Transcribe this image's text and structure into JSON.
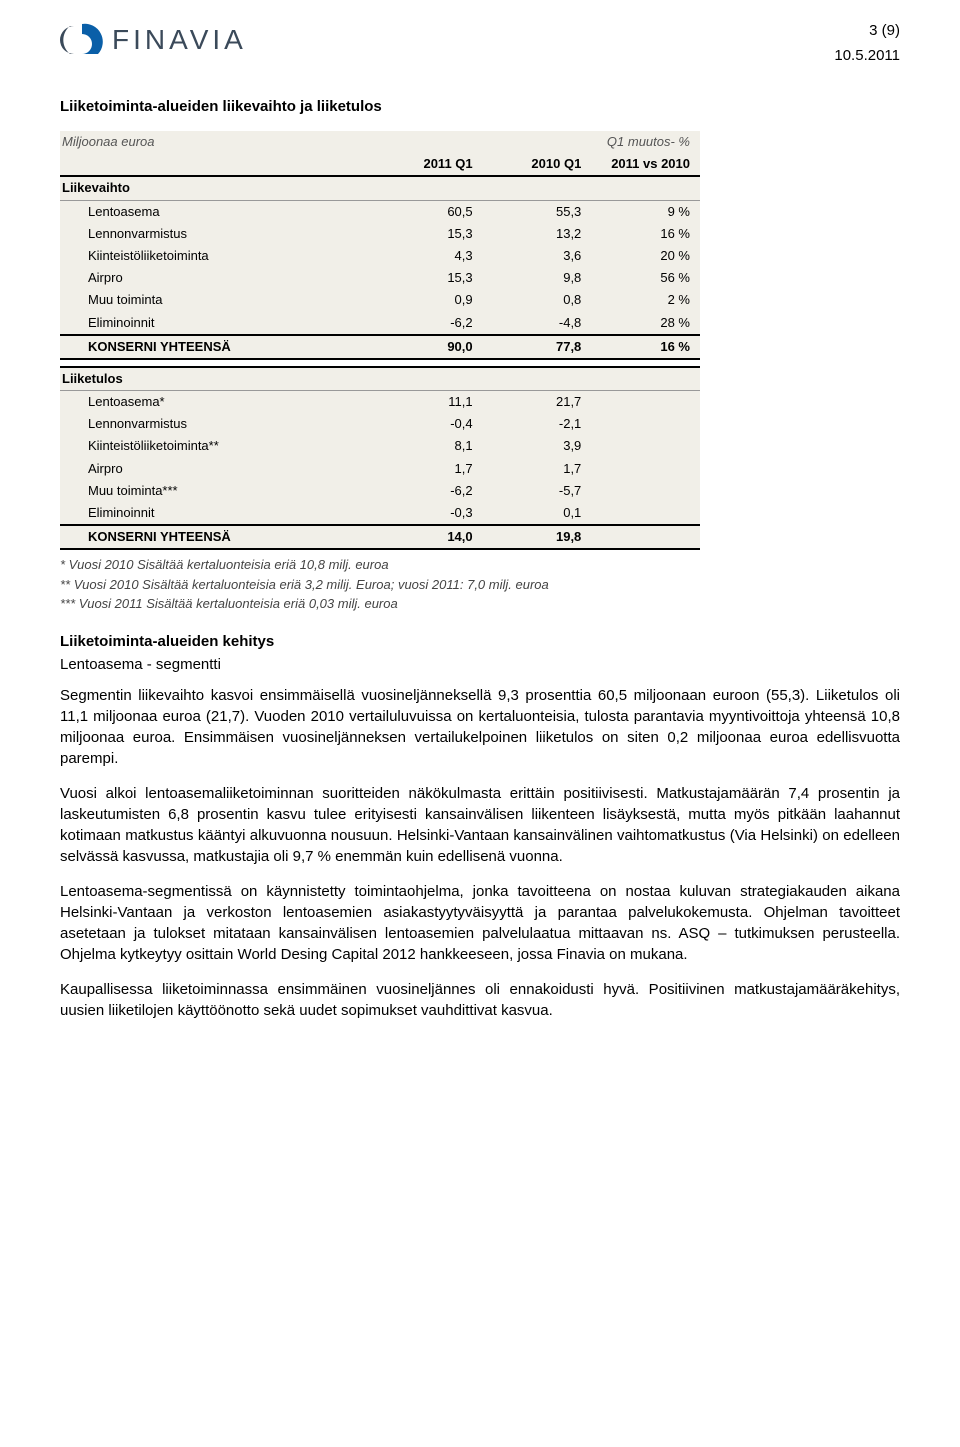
{
  "header": {
    "page_number": "3 (9)",
    "date": "10.5.2011",
    "logo_text": "FINAVIA"
  },
  "section_title": "Liiketoiminta-alueiden liikevaihto ja liiketulos",
  "table": {
    "unit_label": "Miljoonaa euroa",
    "col_headers": {
      "c1": "2011 Q1",
      "c2": "2010 Q1",
      "c3_top": "Q1 muutos- %",
      "c3_bot": "2011 vs 2010"
    },
    "groups": [
      {
        "label": "Liikevaihto",
        "rows": [
          {
            "label": "Lentoasema",
            "v1": "60,5",
            "v2": "55,3",
            "chg": "9 %"
          },
          {
            "label": "Lennonvarmistus",
            "v1": "15,3",
            "v2": "13,2",
            "chg": "16 %"
          },
          {
            "label": "Kiinteistöliiketoiminta",
            "v1": "4,3",
            "v2": "3,6",
            "chg": "20 %"
          },
          {
            "label": "Airpro",
            "v1": "15,3",
            "v2": "9,8",
            "chg": "56 %"
          },
          {
            "label": "Muu toiminta",
            "v1": "0,9",
            "v2": "0,8",
            "chg": "2 %"
          },
          {
            "label": "Eliminoinnit",
            "v1": "-6,2",
            "v2": "-4,8",
            "chg": "28 %"
          }
        ],
        "total": {
          "label": "KONSERNI YHTEENSÄ",
          "v1": "90,0",
          "v2": "77,8",
          "chg": "16 %"
        }
      },
      {
        "label": "Liiketulos",
        "rows": [
          {
            "label": "Lentoasema*",
            "v1": "11,1",
            "v2": "21,7",
            "chg": ""
          },
          {
            "label": "Lennonvarmistus",
            "v1": "-0,4",
            "v2": "-2,1",
            "chg": ""
          },
          {
            "label": "Kiinteistöliiketoiminta**",
            "v1": "8,1",
            "v2": "3,9",
            "chg": ""
          },
          {
            "label": "Airpro",
            "v1": "1,7",
            "v2": "1,7",
            "chg": ""
          },
          {
            "label": "Muu toiminta***",
            "v1": "-6,2",
            "v2": "-5,7",
            "chg": ""
          },
          {
            "label": "Eliminoinnit",
            "v1": "-0,3",
            "v2": "0,1",
            "chg": ""
          }
        ],
        "total": {
          "label": "KONSERNI YHTEENSÄ",
          "v1": "14,0",
          "v2": "19,8",
          "chg": ""
        }
      }
    ],
    "footnotes": [
      "* Vuosi 2010 Sisältää kertaluonteisia eriä 10,8 milj. euroa",
      "** Vuosi 2010 Sisältää kertaluonteisia eriä 3,2 milij. Euroa; vuosi 2011: 7,0 milj. euroa",
      "*** Vuosi 2011 Sisältää kertaluonteisia eriä 0,03 milj. euroa"
    ]
  },
  "subheading": "Liiketoiminta-alueiden kehitys",
  "segment_label": "Lentoasema - segmentti",
  "paragraphs": [
    "Segmentin liikevaihto kasvoi ensimmäisellä vuosineljänneksellä 9,3 prosenttia 60,5 miljoonaan euroon (55,3). Liiketulos oli 11,1 miljoonaa euroa (21,7). Vuoden 2010 vertailuluvuissa on kertaluonteisia, tulosta parantavia myyntivoittoja yhteensä 10,8 miljoonaa euroa. Ensimmäisen vuosineljänneksen vertailukelpoinen liiketulos on siten 0,2 miljoonaa euroa edellisvuotta parempi.",
    "Vuosi alkoi lentoasemaliiketoiminnan suoritteiden näkökulmasta erittäin positiivisesti. Matkustajamäärän 7,4 prosentin ja laskeutumisten 6,8 prosentin kasvu tulee erityisesti kansainvälisen liikenteen lisäyksestä, mutta myös pitkään laahannut kotimaan matkustus kääntyi alkuvuonna nousuun. Helsinki-Vantaan kansainvälinen vaihtomatkustus (Via Helsinki) on edelleen selvässä kasvussa, matkustajia oli 9,7 % enemmän kuin edellisenä vuonna.",
    "Lentoasema-segmentissä on käynnistetty toimintaohjelma, jonka tavoitteena on nostaa kuluvan strategiakauden aikana Helsinki-Vantaan ja verkoston lentoasemien asiakastyytyväisyyttä ja parantaa palvelukokemusta. Ohjelman tavoitteet asetetaan ja tulokset mitataan kansainvälisen lentoasemien palvelulaatua mittaavan ns. ASQ – tutkimuksen perusteella. Ohjelma kytkeytyy osittain World Desing Capital 2012 hankkeeseen, jossa Finavia on mukana.",
    "Kaupallisessa liiketoiminnassa ensimmäinen vuosineljännes oli ennakoidusti hyvä. Positiivinen matkustajamääräkehitys, uusien liiketilojen käyttöönotto sekä uudet sopimukset vauhdittivat kasvua."
  ],
  "colors": {
    "table_bg": "#f1efe8",
    "logo_primary": "#0a5fa8",
    "logo_secondary": "#3b4a5a"
  }
}
